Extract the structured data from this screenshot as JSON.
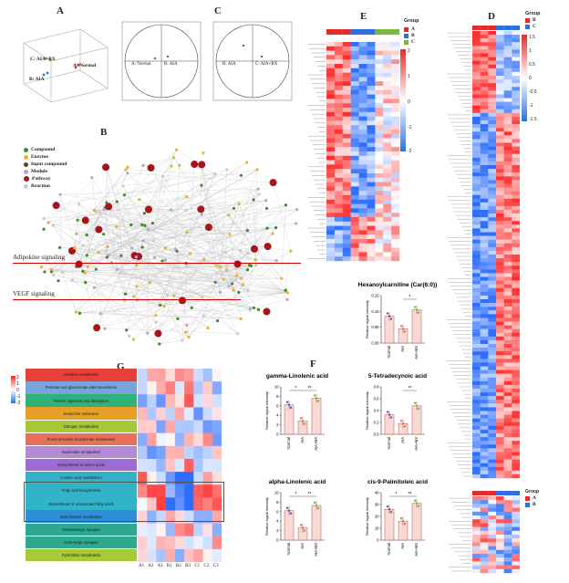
{
  "panels": {
    "A": {
      "letter": "A",
      "labels": [
        "A: Normal",
        "B: AIA",
        "C: AIA+BX"
      ]
    },
    "B": {
      "letter": "B",
      "legend": [
        {
          "name": "Compound",
          "color": "#3e8a2e"
        },
        {
          "name": "Enzyme",
          "color": "#e8b231"
        },
        {
          "name": "Input compound",
          "color": "#6a3e12"
        },
        {
          "name": "Module",
          "color": "#b7a4cf"
        },
        {
          "name": "Pathway",
          "color": "#a4161a"
        },
        {
          "name": "Reaction",
          "color": "#c9c9c9"
        }
      ],
      "annotations": [
        "Adipokine signaling",
        "VEGF signaling"
      ]
    },
    "C": {
      "letter": "C",
      "plot1": {
        "left": "A: Normal",
        "right": "B: AIA"
      },
      "plot2": {
        "left": "B: AIA",
        "right": "C: AIA+BX"
      }
    },
    "D": {
      "letter": "D",
      "legend_title": "Group",
      "groups": [
        "B",
        "C"
      ],
      "group_colors": [
        "#e32b2b",
        "#2b6fe0"
      ],
      "scale": [
        "1.5",
        "1",
        "0.5",
        "0",
        "-0.5",
        "-1",
        "-1.5"
      ],
      "legend2_title": "Group",
      "groups2": [
        "A",
        "B"
      ]
    },
    "E": {
      "letter": "E",
      "legend_title": "Group",
      "groups": [
        "A",
        "B",
        "C"
      ],
      "group_colors": [
        "#e32b2b",
        "#2b6fe0",
        "#7cb83a"
      ],
      "scale": [
        "2",
        "1",
        "0",
        "-1",
        "-2"
      ]
    },
    "F": {
      "letter": "F"
    },
    "G": {
      "letter": "G",
      "categories": [
        {
          "label": "Histidine metabolism",
          "color": "#e84038"
        },
        {
          "label": "Pentose and glucuronate interconversions",
          "color": "#7aa3db"
        },
        {
          "label": "Protein digestion and absorption",
          "color": "#2eb27a"
        },
        {
          "label": "Endocrine resistance",
          "color": "#e8a024"
        },
        {
          "label": "Nitrogen metabolism",
          "color": "#a8c838"
        },
        {
          "label": "Proximal tubule bicarbonate reclamation",
          "color": "#e8705a"
        },
        {
          "label": "Nucleotide metabolism",
          "color": "#b48ad6"
        },
        {
          "label": "Biosynthesis of amino acids",
          "color": "#9e6bd6"
        },
        {
          "label": "Linoleic acid metabolism",
          "color": "#32b4c8"
        },
        {
          "label": "Fatty acid biosynthesis",
          "color": "#32b4c8"
        },
        {
          "label": "Biosynthesis of unsaturated fatty acids",
          "color": "#32b4c8"
        },
        {
          "label": "beta-Alanine metabolism",
          "color": "#2e8fd6"
        },
        {
          "label": "Glutamatergic synapse",
          "color": "#2ea88e"
        },
        {
          "label": "GABAergic synapse",
          "color": "#2ea88e"
        },
        {
          "label": "Pyrimidine metabolism",
          "color": "#a8c838"
        }
      ],
      "columns": [
        "A1",
        "A2",
        "A3",
        "B1",
        "B2",
        "B3",
        "C1",
        "C2",
        "C3"
      ],
      "scale": [
        "2",
        "1",
        "0",
        "-1",
        "-2"
      ]
    }
  },
  "chart_data": [
    {
      "type": "bar",
      "title": "Hexanoylcarnitine (Car(6:0))",
      "ylabel": "Relative signal intensity",
      "categories": [
        "Normal",
        "AIA",
        "AIA+BX"
      ],
      "values": [
        0.085,
        0.045,
        0.105
      ],
      "ylim": [
        0,
        0.15
      ],
      "yticks": [
        "0.00",
        "0.05",
        "0.10",
        "0.15"
      ],
      "sig": [
        "*"
      ]
    },
    {
      "type": "bar",
      "title": "gamma-Linolenic acid",
      "ylabel": "Relative signal intensity",
      "categories": [
        "Normal",
        "AIA",
        "AIA+BX"
      ],
      "values": [
        6.2,
        2.8,
        7.6
      ],
      "ylim": [
        0,
        10
      ],
      "yticks": [
        "0",
        "2",
        "4",
        "6",
        "8",
        "10"
      ],
      "sig": [
        "*",
        "**"
      ]
    },
    {
      "type": "bar",
      "title": "5-Tetradecynoic acid",
      "ylabel": "Relative signal intensity",
      "categories": [
        "Normal",
        "AIA",
        "AIA+BX"
      ],
      "values": [
        0.33,
        0.18,
        0.48
      ],
      "ylim": [
        0,
        0.8
      ],
      "yticks": [
        "0.0",
        "0.2",
        "0.4",
        "0.6",
        "0.8"
      ],
      "sig": [
        "**"
      ]
    },
    {
      "type": "bar",
      "title": "alpha-Linolenic acid",
      "ylabel": "Relative signal intensity",
      "categories": [
        "Normal",
        "AIA",
        "AIA+BX"
      ],
      "values": [
        6.2,
        2.6,
        7.3
      ],
      "ylim": [
        0,
        10
      ],
      "yticks": [
        "0",
        "2",
        "4",
        "6",
        "8",
        "10"
      ],
      "sig": [
        "*",
        "**"
      ]
    },
    {
      "type": "bar",
      "title": "cis-9-Palmitoleic acid",
      "ylabel": "Relative signal intensity",
      "categories": [
        "Normal",
        "AIA",
        "AIA+BX"
      ],
      "values": [
        26,
        16,
        31
      ],
      "ylim": [
        0,
        40
      ],
      "yticks": [
        "0",
        "10",
        "20",
        "30",
        "40"
      ],
      "sig": [
        "*",
        "**"
      ]
    }
  ]
}
